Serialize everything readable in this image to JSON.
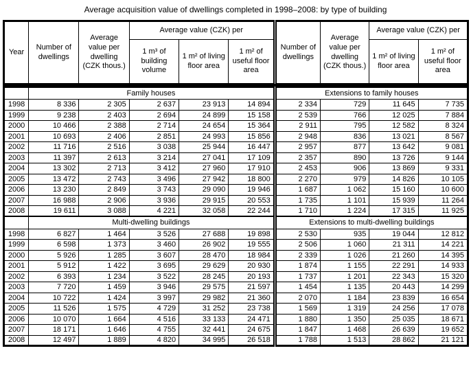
{
  "chart_data": {
    "type": "table",
    "title": "Average acquisition value of dwellings completed in 1998–2008: by type of building",
    "header": {
      "year": "Year",
      "left": {
        "number": "Number of dwellings",
        "avg_per_dwelling": "Average value per dwelling (CZK thous.)",
        "group": "Average value (CZK) per",
        "sub": [
          "1 m³ of building volume",
          "1 m² of living floor area",
          "1 m² of useful floor area"
        ]
      },
      "right": {
        "number": "Number of dwellings",
        "avg_per_dwelling": "Average value per dwelling (CZK thous.)",
        "group": "Average value (CZK) per",
        "sub": [
          "1 m² of living floor area",
          "1 m² of useful floor area"
        ]
      }
    },
    "sections": [
      {
        "left_label": "Family houses",
        "right_label": "Extensions to family houses",
        "rows": [
          {
            "year": "1998",
            "left": [
              "8 336",
              "2 305",
              "2 637",
              "23 913",
              "14 894"
            ],
            "right": [
              "2 334",
              "729",
              "11 645",
              "7 735"
            ]
          },
          {
            "year": "1999",
            "left": [
              "9 238",
              "2 403",
              "2 694",
              "24 899",
              "15 158"
            ],
            "right": [
              "2 539",
              "766",
              "12 025",
              "7 884"
            ]
          },
          {
            "year": "2000",
            "left": [
              "10 466",
              "2 388",
              "2 714",
              "24 654",
              "15 364"
            ],
            "right": [
              "2 911",
              "795",
              "12 582",
              "8 324"
            ]
          },
          {
            "year": "2001",
            "left": [
              "10 693",
              "2 406",
              "2 851",
              "24 993",
              "15 856"
            ],
            "right": [
              "2 948",
              "836",
              "13 021",
              "8 567"
            ]
          },
          {
            "year": "2002",
            "left": [
              "11 716",
              "2 516",
              "3 038",
              "25 944",
              "16 447"
            ],
            "right": [
              "2 957",
              "877",
              "13 642",
              "9 081"
            ]
          },
          {
            "year": "2003",
            "left": [
              "11 397",
              "2 613",
              "3 214",
              "27 041",
              "17 109"
            ],
            "right": [
              "2 357",
              "890",
              "13 726",
              "9 144"
            ]
          },
          {
            "year": "2004",
            "left": [
              "13 302",
              "2 713",
              "3 412",
              "27 960",
              "17 910"
            ],
            "right": [
              "2 453",
              "906",
              "13 869",
              "9 331"
            ]
          },
          {
            "year": "2005",
            "left": [
              "13 472",
              "2 743",
              "3 496",
              "27 942",
              "18 800"
            ],
            "right": [
              "2 270",
              "979",
              "14 826",
              "10 105"
            ]
          },
          {
            "year": "2006",
            "left": [
              "13 230",
              "2 849",
              "3 743",
              "29 090",
              "19 946"
            ],
            "right": [
              "1 687",
              "1 062",
              "15 160",
              "10 600"
            ]
          },
          {
            "year": "2007",
            "left": [
              "16 988",
              "2 906",
              "3 936",
              "29 915",
              "20 553"
            ],
            "right": [
              "1 735",
              "1 101",
              "15 939",
              "11 264"
            ]
          },
          {
            "year": "2008",
            "left": [
              "19 611",
              "3 088",
              "4 221",
              "32 058",
              "22 244"
            ],
            "right": [
              "1 710",
              "1 224",
              "17 315",
              "11 925"
            ]
          }
        ]
      },
      {
        "left_label": "Multi-dwelling buildings",
        "right_label": "Extensions to multi-dwelling buildings",
        "rows": [
          {
            "year": "1998",
            "left": [
              "6 827",
              "1 464",
              "3 526",
              "27 688",
              "19 898"
            ],
            "right": [
              "2 530",
              "935",
              "19 044",
              "12 812"
            ]
          },
          {
            "year": "1999",
            "left": [
              "6 598",
              "1 373",
              "3 460",
              "26 902",
              "19 555"
            ],
            "right": [
              "2 506",
              "1 060",
              "21 311",
              "14 221"
            ]
          },
          {
            "year": "2000",
            "left": [
              "5 926",
              "1 285",
              "3 607",
              "28 470",
              "18 984"
            ],
            "right": [
              "2 339",
              "1 026",
              "21 260",
              "14 395"
            ]
          },
          {
            "year": "2001",
            "left": [
              "5 912",
              "1 422",
              "3 695",
              "29 629",
              "20 930"
            ],
            "right": [
              "1 874",
              "1 155",
              "22 291",
              "14 933"
            ]
          },
          {
            "year": "2002",
            "left": [
              "6 393",
              "1 234",
              "3 522",
              "28 245",
              "20 193"
            ],
            "right": [
              "1 737",
              "1 201",
              "22 343",
              "15 320"
            ]
          },
          {
            "year": "2003",
            "left": [
              "7 720",
              "1 459",
              "3 946",
              "29 575",
              "21 597"
            ],
            "right": [
              "1 454",
              "1 135",
              "20 443",
              "14 299"
            ]
          },
          {
            "year": "2004",
            "left": [
              "10 722",
              "1 424",
              "3 997",
              "29 982",
              "21 360"
            ],
            "right": [
              "2 070",
              "1 184",
              "23 839",
              "16 654"
            ]
          },
          {
            "year": "2005",
            "left": [
              "11 526",
              "1 575",
              "4 729",
              "31 252",
              "23 738"
            ],
            "right": [
              "1 569",
              "1 319",
              "24 256",
              "17 078"
            ]
          },
          {
            "year": "2006",
            "left": [
              "10 070",
              "1 664",
              "4 516",
              "33 133",
              "24 471"
            ],
            "right": [
              "1 880",
              "1 350",
              "25 035",
              "18 671"
            ]
          },
          {
            "year": "2007",
            "left": [
              "18 171",
              "1 646",
              "4 755",
              "32 441",
              "24 675"
            ],
            "right": [
              "1 847",
              "1 468",
              "26 639",
              "19 652"
            ]
          },
          {
            "year": "2008",
            "left": [
              "12 497",
              "1 889",
              "4 820",
              "34 995",
              "26 518"
            ],
            "right": [
              "1 788",
              "1 513",
              "28 862",
              "21 121"
            ]
          }
        ]
      }
    ]
  }
}
